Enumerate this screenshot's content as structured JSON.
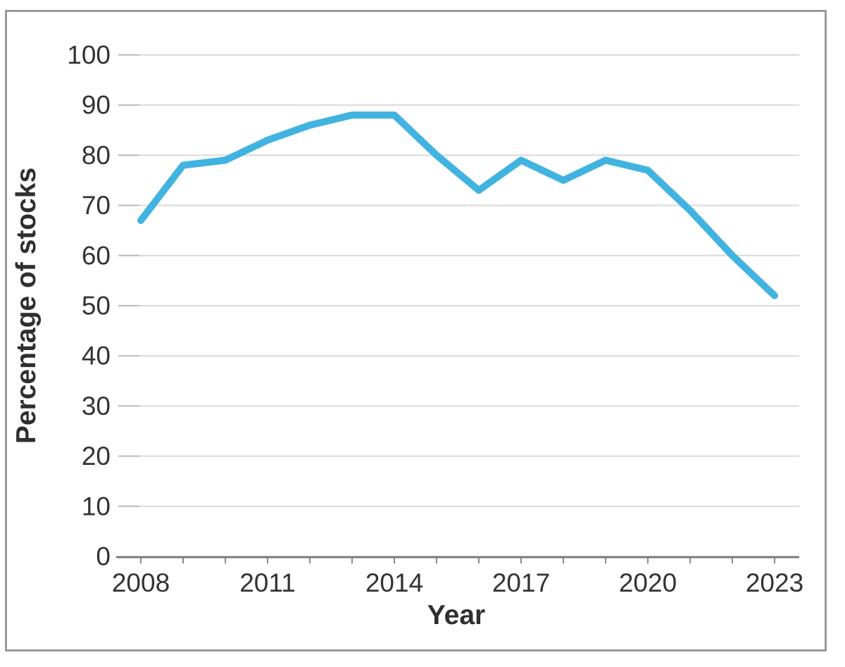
{
  "figure": {
    "xlabel": "Year",
    "ylabel": "Percentage of stocks"
  },
  "chart_data": {
    "type": "line",
    "title": "",
    "xlabel": "Year",
    "ylabel": "Percentage of stocks",
    "x": [
      2008,
      2009,
      2010,
      2011,
      2012,
      2013,
      2014,
      2015,
      2016,
      2017,
      2018,
      2019,
      2020,
      2021,
      2022,
      2023
    ],
    "series": [
      {
        "name": "Percentage of stocks",
        "values": [
          67,
          78,
          79,
          83,
          86,
          88,
          88,
          80,
          73,
          79,
          75,
          79,
          77,
          69,
          60,
          52
        ]
      }
    ],
    "ylim": [
      0,
      100
    ],
    "yticks": [
      "0",
      "10",
      "20",
      "30",
      "40",
      "50",
      "60",
      "70",
      "80",
      "90",
      "100"
    ],
    "ytick_values": [
      0,
      10,
      20,
      30,
      40,
      50,
      60,
      70,
      80,
      90,
      100
    ],
    "xtick_labels": [
      "2008",
      "2011",
      "2014",
      "2017",
      "2020",
      "2023"
    ],
    "xtick_label_values": [
      2008,
      2011,
      2014,
      2017,
      2020,
      2023
    ],
    "minor_xticks_every_year": true,
    "grid": "horizontal",
    "legend_position": "none"
  },
  "colors": {
    "line": "#41b3e1",
    "gridline": "#d9d9d9",
    "tick_dash": "#bdbdbd",
    "axis_line": "#7a7a7a",
    "minor_tick": "#8a8a8a",
    "text": "#333333",
    "frame_border": "#9a9a9a",
    "background": "#ffffff"
  }
}
